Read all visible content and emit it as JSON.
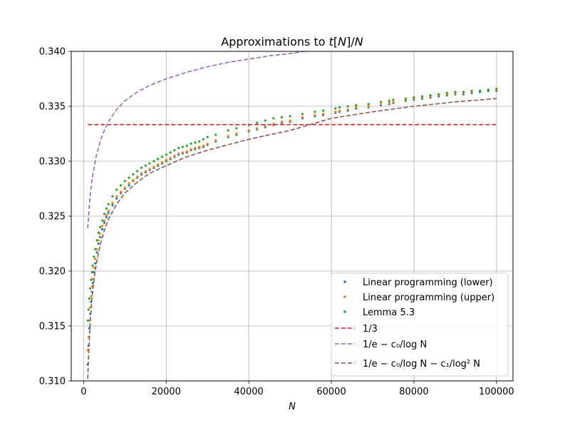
{
  "chart_data": {
    "type": "scatter",
    "title": "Approximations to t[N]/N",
    "xlabel": "N",
    "ylabel": "",
    "xlim": [
      -3000,
      104000
    ],
    "ylim": [
      0.31,
      0.34
    ],
    "xticks": [
      0,
      20000,
      40000,
      60000,
      80000,
      100000
    ],
    "xtick_labels": [
      "0",
      "20000",
      "40000",
      "60000",
      "80000",
      "100000"
    ],
    "yticks": [
      0.31,
      0.315,
      0.32,
      0.325,
      0.33,
      0.335,
      0.34
    ],
    "ytick_labels": [
      "0.310",
      "0.315",
      "0.320",
      "0.325",
      "0.330",
      "0.335",
      "0.340"
    ],
    "grid": true,
    "legend_position": "lower-right",
    "series": [
      {
        "name": "Linear programming (lower)",
        "kind": "points",
        "color": "#1f77b4",
        "x": [
          1000,
          1200,
          1400,
          1600,
          1800,
          2000,
          2200,
          2500,
          2800,
          3200,
          3600,
          4000,
          4500,
          5000,
          5500,
          6000,
          7000,
          8000,
          9000,
          10000,
          11000,
          12000,
          13000,
          14000,
          15000,
          16000,
          17000,
          18000,
          19000,
          20000,
          21000,
          22000,
          23000,
          24000,
          25000,
          26000,
          27000,
          28000,
          29000,
          30000,
          32000,
          35000,
          37000,
          40000,
          42000,
          44000,
          46000,
          48000,
          50000,
          53000,
          56000,
          58000,
          61000,
          62000,
          64000,
          66000,
          69000,
          72000,
          74000,
          75000,
          78000,
          80000,
          82000,
          84000,
          86000,
          88000,
          90000,
          92000,
          94000,
          96000,
          98000,
          100000
        ],
        "y": [
          0.3115,
          0.3132,
          0.3148,
          0.3161,
          0.3172,
          0.3181,
          0.3189,
          0.3199,
          0.3207,
          0.3217,
          0.3225,
          0.3231,
          0.3238,
          0.3244,
          0.3249,
          0.3253,
          0.326,
          0.3266,
          0.3271,
          0.3275,
          0.3278,
          0.3282,
          0.3285,
          0.3288,
          0.329,
          0.3292,
          0.3294,
          0.3296,
          0.3298,
          0.33,
          0.3302,
          0.3304,
          0.3306,
          0.3307,
          0.3308,
          0.331,
          0.3311,
          0.3312,
          0.3313,
          0.3315,
          0.3318,
          0.3322,
          0.3324,
          0.3327,
          0.3329,
          0.3331,
          0.3333,
          0.3335,
          0.3336,
          0.3339,
          0.3341,
          0.3342,
          0.3344,
          0.3345,
          0.3346,
          0.3348,
          0.3349,
          0.3351,
          0.3352,
          0.3353,
          0.3355,
          0.3356,
          0.3357,
          0.3358,
          0.3359,
          0.336,
          0.3361,
          0.3361,
          0.3362,
          0.3363,
          0.3364,
          0.3364
        ]
      },
      {
        "name": "Linear programming (upper)",
        "kind": "points",
        "color": "#ff7f0e",
        "x": [
          1000,
          1200,
          1400,
          1600,
          1800,
          2000,
          2200,
          2500,
          2800,
          3200,
          3600,
          4000,
          4500,
          5000,
          5500,
          6000,
          7000,
          8000,
          9000,
          10000,
          11000,
          12000,
          13000,
          14000,
          15000,
          16000,
          17000,
          18000,
          19000,
          20000,
          21000,
          22000,
          23000,
          24000,
          25000,
          26000,
          27000,
          28000,
          29000,
          30000,
          32000,
          35000,
          37000,
          40000,
          42000,
          44000,
          46000,
          48000,
          50000,
          53000,
          56000,
          58000,
          61000,
          62000,
          64000,
          66000,
          69000,
          72000,
          74000,
          75000,
          78000,
          80000,
          82000,
          84000,
          86000,
          88000,
          90000,
          92000,
          94000,
          96000,
          98000,
          100000
        ],
        "y": [
          0.3128,
          0.314,
          0.3155,
          0.3167,
          0.3177,
          0.3186,
          0.3193,
          0.3203,
          0.3211,
          0.322,
          0.3228,
          0.3234,
          0.3241,
          0.3246,
          0.3251,
          0.3255,
          0.3262,
          0.3268,
          0.3272,
          0.3276,
          0.328,
          0.3283,
          0.3286,
          0.3289,
          0.3291,
          0.3293,
          0.3295,
          0.3297,
          0.3299,
          0.3301,
          0.3303,
          0.3305,
          0.3307,
          0.3308,
          0.3309,
          0.3311,
          0.3312,
          0.3313,
          0.3314,
          0.3316,
          0.3319,
          0.3323,
          0.3325,
          0.3328,
          0.333,
          0.3332,
          0.3334,
          0.3336,
          0.3337,
          0.334,
          0.3342,
          0.3343,
          0.3345,
          0.3346,
          0.3347,
          0.3349,
          0.335,
          0.3352,
          0.3353,
          0.3354,
          0.3356,
          0.3357,
          0.3358,
          0.3359,
          0.336,
          0.3361,
          0.3362,
          0.3362,
          0.3363,
          0.3364,
          0.3365,
          0.3365
        ]
      },
      {
        "name": "Lemma 5.3",
        "kind": "points",
        "color": "#2ca02c",
        "x": [
          1000,
          1200,
          1400,
          1600,
          1800,
          2000,
          2200,
          2500,
          2800,
          3200,
          3600,
          4000,
          4500,
          5000,
          5500,
          6000,
          7000,
          8000,
          9000,
          10000,
          11000,
          12000,
          13000,
          14000,
          15000,
          16000,
          17000,
          18000,
          19000,
          20000,
          21000,
          22000,
          23000,
          24000,
          25000,
          26000,
          27000,
          28000,
          29000,
          30000,
          32000,
          35000,
          37000,
          40000,
          42000,
          44000,
          46000,
          48000,
          50000,
          53000,
          56000,
          58000,
          61000,
          62000,
          64000,
          66000,
          69000,
          72000,
          74000,
          75000,
          78000,
          80000,
          82000,
          84000,
          86000,
          88000,
          90000,
          92000,
          94000,
          96000,
          98000,
          100000
        ],
        "y": [
          0.3155,
          0.3165,
          0.3175,
          0.3184,
          0.3192,
          0.3199,
          0.3205,
          0.3213,
          0.322,
          0.3228,
          0.3235,
          0.324,
          0.3246,
          0.3252,
          0.3257,
          0.3261,
          0.3268,
          0.3274,
          0.3278,
          0.3282,
          0.3285,
          0.3288,
          0.3291,
          0.3294,
          0.3296,
          0.3298,
          0.33,
          0.3302,
          0.3304,
          0.3306,
          0.3308,
          0.331,
          0.3312,
          0.3313,
          0.3314,
          0.3316,
          0.3317,
          0.3318,
          0.332,
          0.3322,
          0.3324,
          0.3328,
          0.333,
          0.3333,
          0.3335,
          0.3337,
          0.3339,
          0.334,
          0.3341,
          0.3343,
          0.3345,
          0.3346,
          0.3348,
          0.3349,
          0.335,
          0.3351,
          0.3352,
          0.3354,
          0.3355,
          0.3356,
          0.3357,
          0.3358,
          0.3359,
          0.336,
          0.3361,
          0.3362,
          0.3363,
          0.3363,
          0.3364,
          0.3364,
          0.3365,
          0.3366
        ]
      },
      {
        "name": "1/3",
        "kind": "line",
        "color": "#d62728",
        "x": [
          1000,
          100000
        ],
        "y": [
          0.33333,
          0.33333
        ]
      },
      {
        "name": "1/e − c₀/log N",
        "kind": "line",
        "color": "#9467bd",
        "x": [
          1000,
          1500,
          2000,
          3000,
          4000,
          5000,
          6000,
          8000,
          10000,
          13000,
          16000,
          20000,
          25000,
          30000,
          35000,
          40000,
          45000,
          50000,
          55000
        ],
        "y": [
          0.3239,
          0.3266,
          0.3283,
          0.3304,
          0.3318,
          0.3328,
          0.3336,
          0.3347,
          0.3355,
          0.3363,
          0.3369,
          0.3375,
          0.3381,
          0.3386,
          0.339,
          0.3393,
          0.3396,
          0.3398,
          0.3401
        ]
      },
      {
        "name": "1/e − c₀/log N − c₁/log² N",
        "kind": "line",
        "color": "#8c564b",
        "x": [
          1000,
          1200,
          1500,
          2000,
          2500,
          3000,
          4000,
          5000,
          6000,
          8000,
          10000,
          13000,
          16000,
          20000,
          25000,
          30000,
          35000,
          40000,
          45000,
          50000,
          60000,
          70000,
          80000,
          90000,
          100000
        ],
        "y": [
          0.3102,
          0.3124,
          0.3148,
          0.3175,
          0.3192,
          0.3205,
          0.3224,
          0.3237,
          0.3247,
          0.3261,
          0.3271,
          0.3281,
          0.3289,
          0.3296,
          0.3304,
          0.331,
          0.3315,
          0.332,
          0.3324,
          0.3328,
          0.3339,
          0.3345,
          0.335,
          0.3354,
          0.3357
        ]
      }
    ]
  }
}
